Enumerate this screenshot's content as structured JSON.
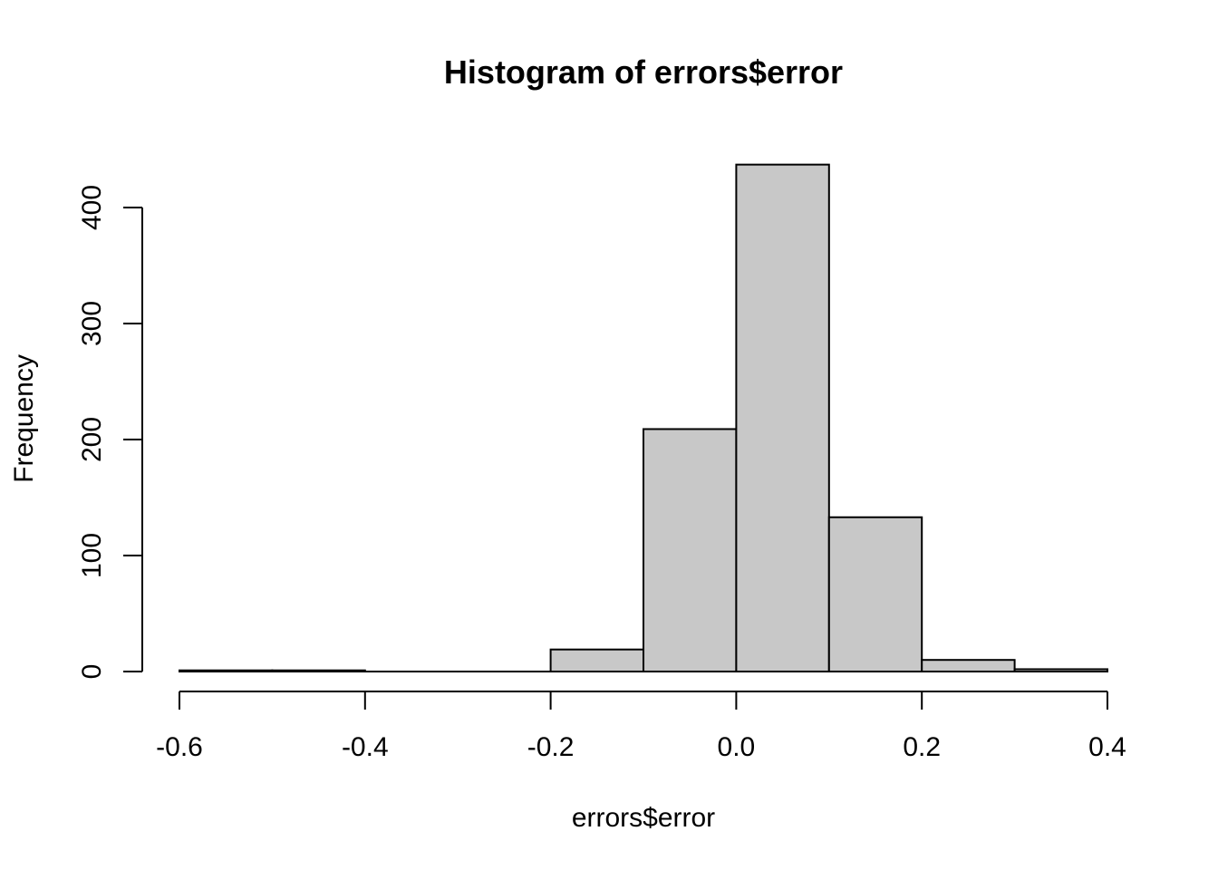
{
  "chart_data": {
    "type": "bar",
    "title": "Histogram of errors$error",
    "xlabel": "errors$error",
    "ylabel": "Frequency",
    "bins": [
      {
        "x0": -0.6,
        "x1": -0.5,
        "count": 1
      },
      {
        "x0": -0.5,
        "x1": -0.4,
        "count": 1
      },
      {
        "x0": -0.4,
        "x1": -0.3,
        "count": 0
      },
      {
        "x0": -0.3,
        "x1": -0.2,
        "count": 0
      },
      {
        "x0": -0.2,
        "x1": -0.1,
        "count": 19
      },
      {
        "x0": -0.1,
        "x1": 0.0,
        "count": 209
      },
      {
        "x0": 0.0,
        "x1": 0.1,
        "count": 437
      },
      {
        "x0": 0.1,
        "x1": 0.2,
        "count": 133
      },
      {
        "x0": 0.2,
        "x1": 0.3,
        "count": 10
      },
      {
        "x0": 0.3,
        "x1": 0.4,
        "count": 2
      }
    ],
    "xticks": [
      -0.6,
      -0.4,
      -0.2,
      0.0,
      0.2,
      0.4
    ],
    "xtick_labels": [
      "-0.6",
      "-0.4",
      "-0.2",
      "0.0",
      "0.2",
      "0.4"
    ],
    "yticks": [
      0,
      100,
      200,
      300,
      400
    ],
    "ytick_labels": [
      "0",
      "100",
      "200",
      "300",
      "400"
    ],
    "xlim": [
      -0.6,
      0.4
    ],
    "ylim": [
      0,
      437
    ],
    "bar_fill": "#c8c8c8",
    "bar_stroke": "#000000",
    "grid": false,
    "legend": "none"
  }
}
